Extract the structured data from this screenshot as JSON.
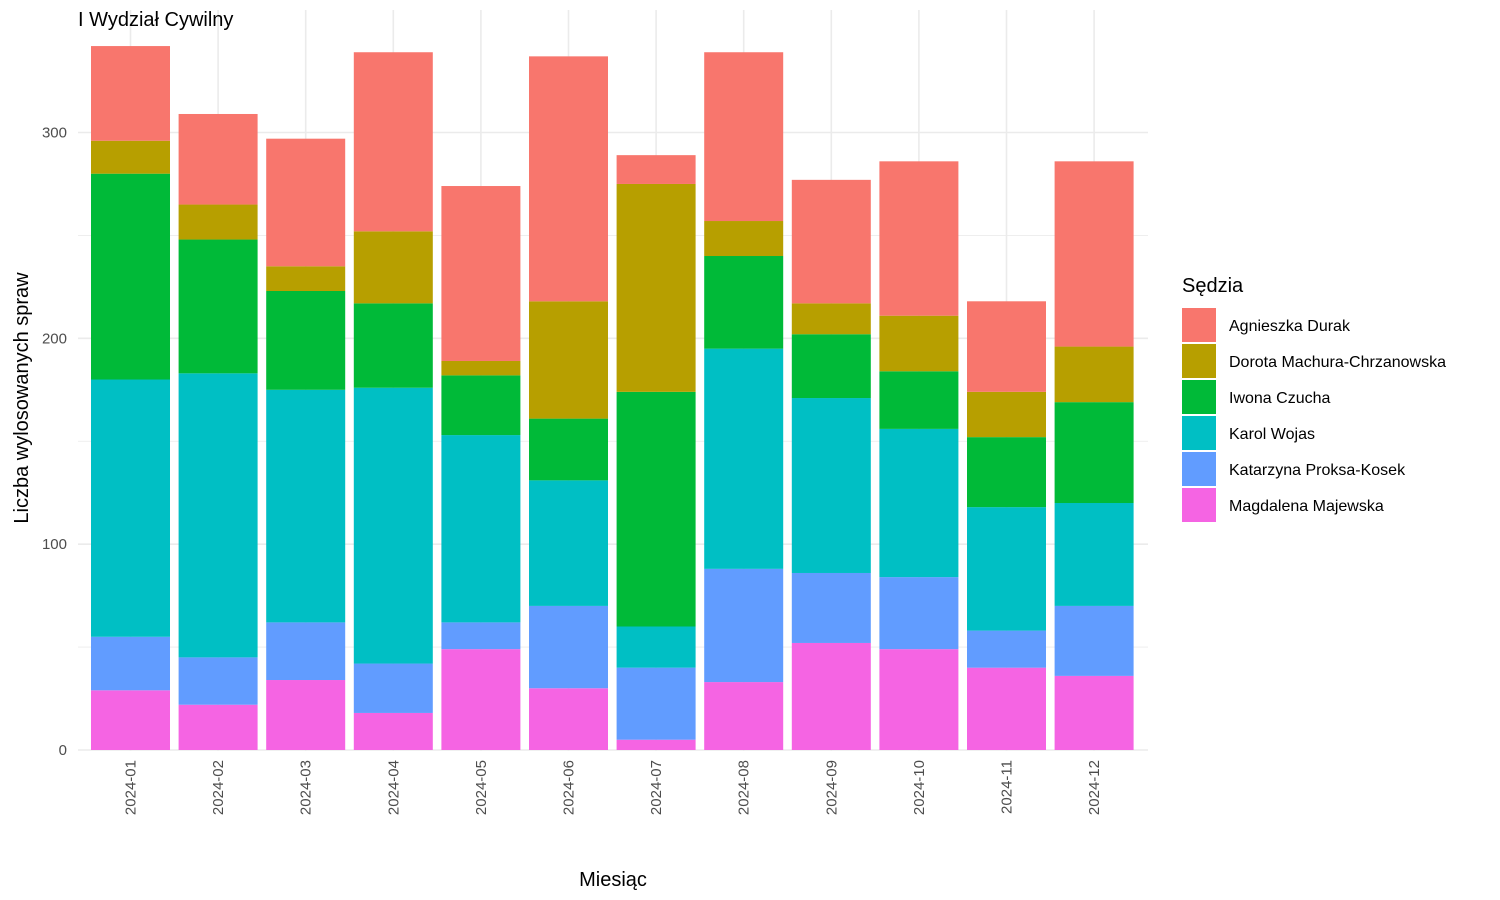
{
  "chart_data": {
    "type": "bar",
    "stacked": true,
    "title": "I Wydział Cywilny",
    "xlabel": "Miesiąc",
    "ylabel": "Liczba wylosowanych spraw",
    "ylim": [
      0,
      345
    ],
    "yticks": [
      0,
      100,
      200,
      300
    ],
    "grid": true,
    "legend_position": "right",
    "legend_title": "Sędzia",
    "categories": [
      "2024-01",
      "2024-02",
      "2024-03",
      "2024-04",
      "2024-05",
      "2024-06",
      "2024-07",
      "2024-08",
      "2024-09",
      "2024-10",
      "2024-11",
      "2024-12"
    ],
    "series": [
      {
        "name": "Agnieszka Durak",
        "color": "#F8766D",
        "values": [
          46,
          44,
          62,
          87,
          85,
          119,
          14,
          82,
          60,
          75,
          44,
          90
        ]
      },
      {
        "name": "Dorota Machura-Chrzanowska",
        "color": "#B79F00",
        "values": [
          16,
          17,
          12,
          35,
          7,
          57,
          101,
          17,
          15,
          27,
          22,
          27
        ]
      },
      {
        "name": "Iwona Czucha",
        "color": "#00BA38",
        "values": [
          100,
          65,
          48,
          41,
          29,
          30,
          114,
          45,
          31,
          28,
          34,
          49
        ]
      },
      {
        "name": "Karol Wojas",
        "color": "#00BFC4",
        "values": [
          125,
          138,
          113,
          134,
          91,
          61,
          20,
          107,
          85,
          72,
          60,
          50
        ]
      },
      {
        "name": "Katarzyna Proksa-Kosek",
        "color": "#619CFF",
        "values": [
          26,
          23,
          28,
          24,
          13,
          40,
          35,
          55,
          34,
          35,
          18,
          34
        ]
      },
      {
        "name": "Magdalena Majewska",
        "color": "#F564E3",
        "values": [
          29,
          22,
          34,
          18,
          49,
          30,
          5,
          33,
          52,
          49,
          40,
          36
        ]
      }
    ]
  }
}
